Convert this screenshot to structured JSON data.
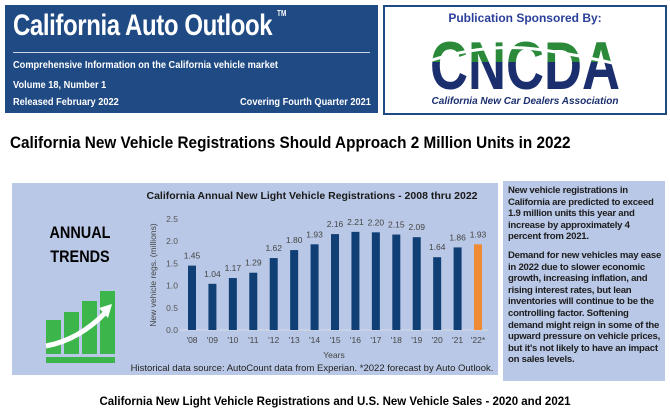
{
  "header": {
    "title": "California Auto Outlook",
    "trademark": "TM",
    "subtitle": "Comprehensive Information on the California vehicle market",
    "volume": "Volume 18, Number 1",
    "released": "Released February 2022",
    "covering": "Covering Fourth Quarter 2021"
  },
  "sponsor": {
    "label": "Publication Sponsored By:",
    "logo_text": "CNCDA",
    "org": "California New Car Dealers Association"
  },
  "headline": "California New Vehicle Registrations Should Approach 2 Million Units in 2022",
  "trends": {
    "line1": "ANNUAL",
    "line2": "TRENDS"
  },
  "chart_data": {
    "type": "bar",
    "title": "California Annual New Light Vehicle Registrations - 2008 thru 2022",
    "xlabel": "Years",
    "ylabel": "New vehicle regs. (millions)",
    "ylim": [
      0,
      2.5
    ],
    "yticks": [
      "0.0",
      "0.5",
      "1.0",
      "1.5",
      "2.0",
      "2.5"
    ],
    "categories": [
      "'08",
      "'09",
      "'10",
      "'11",
      "'12",
      "'13",
      "'14",
      "'15",
      "'16",
      "'17",
      "'18",
      "'19",
      "'20",
      "'21",
      "'22*"
    ],
    "values": [
      1.45,
      1.04,
      1.17,
      1.29,
      1.62,
      1.8,
      1.93,
      2.16,
      2.21,
      2.2,
      2.15,
      2.09,
      1.64,
      1.86,
      1.93
    ],
    "labels": [
      "1.45",
      "1.04",
      "1.17",
      "1.29",
      "1.62",
      "1.80",
      "1.93",
      "2.16",
      "2.21",
      "2.20",
      "2.15",
      "2.09",
      "1.64",
      "1.86",
      "1.93"
    ],
    "colors": {
      "actual": "#0f3f75",
      "forecast": "#ef8a35"
    },
    "grid": false,
    "source": "Historical data source: AutoCount data from Experian. *2022 forecast by Auto Outlook."
  },
  "sidebar": {
    "p1": "New vehicle registrations in California are predicted to exceed 1.9 million units this year and increase by approximately 4 percent from 2021.",
    "p2": "Demand for new vehicles may ease in 2022 due to slower economic growth, increasing inflation, and rising interest rates, but lean inventories will continue to be the controlling factor. Softening demand might reign in some of the upward pressure on vehicle prices, but it's not likely to have an impact on sales levels."
  },
  "caption": "California New Light Vehicle Registrations and U.S. New Vehicle Sales - 2020 and 2021"
}
